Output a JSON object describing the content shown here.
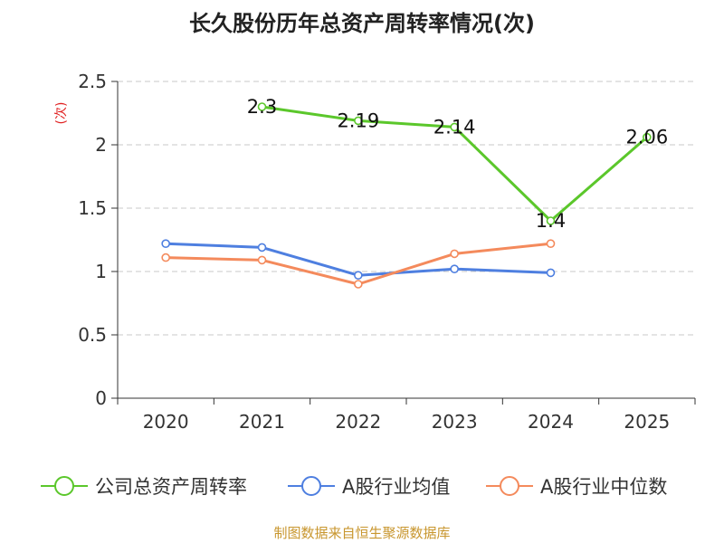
{
  "chart_data": {
    "type": "line",
    "title": "长久股份历年总资产周转率情况(次)",
    "ylabel": "(次)",
    "xlabel": "",
    "categories": [
      "2020",
      "2021",
      "2022",
      "2023",
      "2024",
      "2025"
    ],
    "ylim": [
      0,
      2.5
    ],
    "yticks": [
      "0",
      "0.5",
      "1",
      "1.5",
      "2",
      "2.5"
    ],
    "grid": true,
    "legend_position": "bottom",
    "series": [
      {
        "name": "公司总资产周转率",
        "color": "#5bc72b",
        "values": [
          null,
          2.3,
          2.19,
          2.14,
          1.4,
          2.06
        ],
        "labels": [
          null,
          "2.3",
          "2.19",
          "2.14",
          "1.4",
          "2.06"
        ]
      },
      {
        "name": "A股行业均值",
        "color": "#4e7fe0",
        "values": [
          1.22,
          1.19,
          0.97,
          1.02,
          0.99,
          null
        ],
        "labels": null
      },
      {
        "name": "A股行业中位数",
        "color": "#f48a5c",
        "values": [
          1.11,
          1.09,
          0.9,
          1.14,
          1.22,
          null
        ],
        "labels": null
      }
    ]
  },
  "footer": {
    "source": "制图数据来自恒生聚源数据库"
  }
}
